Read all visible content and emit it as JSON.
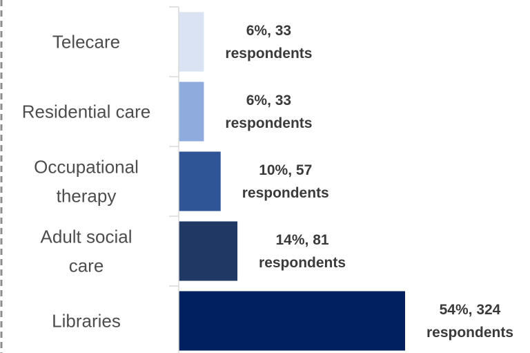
{
  "chart_data": {
    "type": "bar",
    "orientation": "horizontal",
    "categories": [
      "Telecare",
      "Residential care",
      "Occupational therapy",
      "Adult social care",
      "Libraries"
    ],
    "category_label_lines": [
      [
        "Telecare"
      ],
      [
        "Residential care"
      ],
      [
        "Occupational",
        "therapy"
      ],
      [
        "Adult social",
        "care"
      ],
      [
        "Libraries"
      ]
    ],
    "values": [
      6,
      6,
      10,
      14,
      54
    ],
    "respondents": [
      33,
      33,
      57,
      81,
      324
    ],
    "data_labels": [
      [
        "6%, 33",
        "respondents"
      ],
      [
        "6%, 33",
        "respondents"
      ],
      [
        "10%, 57",
        "respondents"
      ],
      [
        "14%, 81",
        "respondents"
      ],
      [
        "54%, 324",
        "respondents"
      ]
    ],
    "bar_colors": [
      "#dae3f3",
      "#8faadc",
      "#2f5597",
      "#203864",
      "#002060"
    ],
    "title": "",
    "xlabel": "",
    "ylabel": "",
    "xlim": [
      0,
      54
    ],
    "grid": false,
    "legend": "none"
  }
}
